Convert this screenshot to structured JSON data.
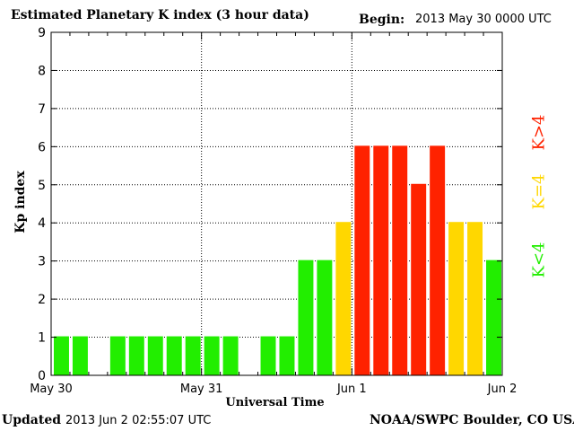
{
  "header": {
    "title": "Estimated Planetary K index (3 hour data)",
    "begin_label": "Begin:",
    "begin_value": "2013 May 30 0000 UTC"
  },
  "footer": {
    "updated_label": "Updated",
    "updated_value": "2013 Jun  2 02:55:07 UTC",
    "source": "NOAA/SWPC Boulder, CO USA"
  },
  "legend": {
    "low": "K<4",
    "mid": "K=4",
    "high": "K>4"
  },
  "colors": {
    "low": "#22ee00",
    "mid": "#ffd700",
    "high": "#ff2200"
  },
  "chart_data": {
    "type": "bar",
    "title": "Estimated Planetary K index (3 hour data)",
    "xlabel": "Universal Time",
    "ylabel": "Kp index",
    "ylim": [
      0,
      9
    ],
    "yticks": [
      "0",
      "1",
      "2",
      "3",
      "4",
      "5",
      "6",
      "7",
      "8",
      "9"
    ],
    "xticks": [
      "May 30",
      "May 31",
      "Jun 1",
      "Jun 2"
    ],
    "bins_per_day": 8,
    "grid": true,
    "values": [
      1,
      1,
      null,
      1,
      1,
      1,
      1,
      1,
      1,
      1,
      null,
      1,
      1,
      3,
      3,
      4,
      6,
      6,
      6,
      5,
      6,
      4,
      4,
      3
    ]
  }
}
